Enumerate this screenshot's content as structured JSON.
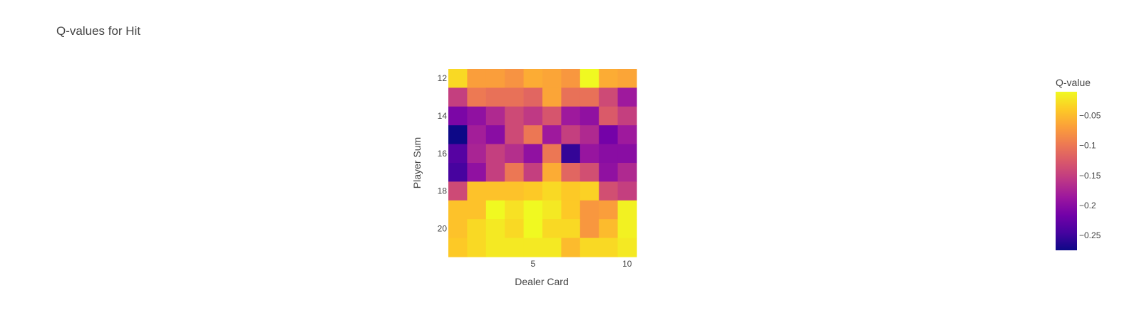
{
  "chart_data": {
    "type": "heatmap",
    "title": "Q-values for Hit",
    "xlabel": "Dealer Card",
    "ylabel": "Player Sum",
    "colorbar_title": "Q-value",
    "x": [
      1,
      2,
      3,
      4,
      5,
      6,
      7,
      8,
      9,
      10
    ],
    "y": [
      12,
      13,
      14,
      15,
      16,
      17,
      18,
      19,
      20,
      21
    ],
    "x_ticks": [
      5,
      10
    ],
    "y_ticks": [
      12,
      14,
      16,
      18,
      20
    ],
    "colorbar_ticks": [
      -0.05,
      -0.1,
      -0.15,
      -0.2,
      -0.25
    ],
    "zlim": [
      -0.275,
      -0.01
    ],
    "colorscale": [
      "#0d0887",
      "#46039f",
      "#7201a8",
      "#9c179e",
      "#bd3786",
      "#d8576b",
      "#ed7953",
      "#fb9f3a",
      "#fdca26",
      "#f0f921"
    ],
    "z": [
      [
        -0.03,
        -0.07,
        -0.07,
        -0.078,
        -0.06,
        -0.065,
        -0.075,
        -0.01,
        -0.06,
        -0.065
      ],
      [
        -0.15,
        -0.098,
        -0.105,
        -0.105,
        -0.115,
        -0.065,
        -0.105,
        -0.105,
        -0.14,
        -0.185
      ],
      [
        -0.21,
        -0.195,
        -0.17,
        -0.14,
        -0.155,
        -0.13,
        -0.185,
        -0.195,
        -0.125,
        -0.15
      ],
      [
        -0.275,
        -0.18,
        -0.2,
        -0.14,
        -0.1,
        -0.185,
        -0.15,
        -0.17,
        -0.215,
        -0.185
      ],
      [
        -0.235,
        -0.175,
        -0.15,
        -0.165,
        -0.195,
        -0.1,
        -0.255,
        -0.19,
        -0.2,
        -0.2
      ],
      [
        -0.245,
        -0.195,
        -0.15,
        -0.1,
        -0.15,
        -0.06,
        -0.115,
        -0.135,
        -0.195,
        -0.17
      ],
      [
        -0.14,
        -0.045,
        -0.045,
        -0.045,
        -0.04,
        -0.03,
        -0.04,
        -0.035,
        -0.135,
        -0.15
      ],
      [
        -0.045,
        -0.045,
        -0.01,
        -0.025,
        -0.01,
        -0.02,
        -0.04,
        -0.075,
        -0.07,
        -0.015
      ],
      [
        -0.045,
        -0.03,
        -0.02,
        -0.03,
        -0.01,
        -0.03,
        -0.03,
        -0.075,
        -0.05,
        -0.015
      ],
      [
        -0.04,
        -0.03,
        -0.02,
        -0.02,
        -0.02,
        -0.02,
        -0.05,
        -0.03,
        -0.03,
        -0.02
      ]
    ]
  }
}
